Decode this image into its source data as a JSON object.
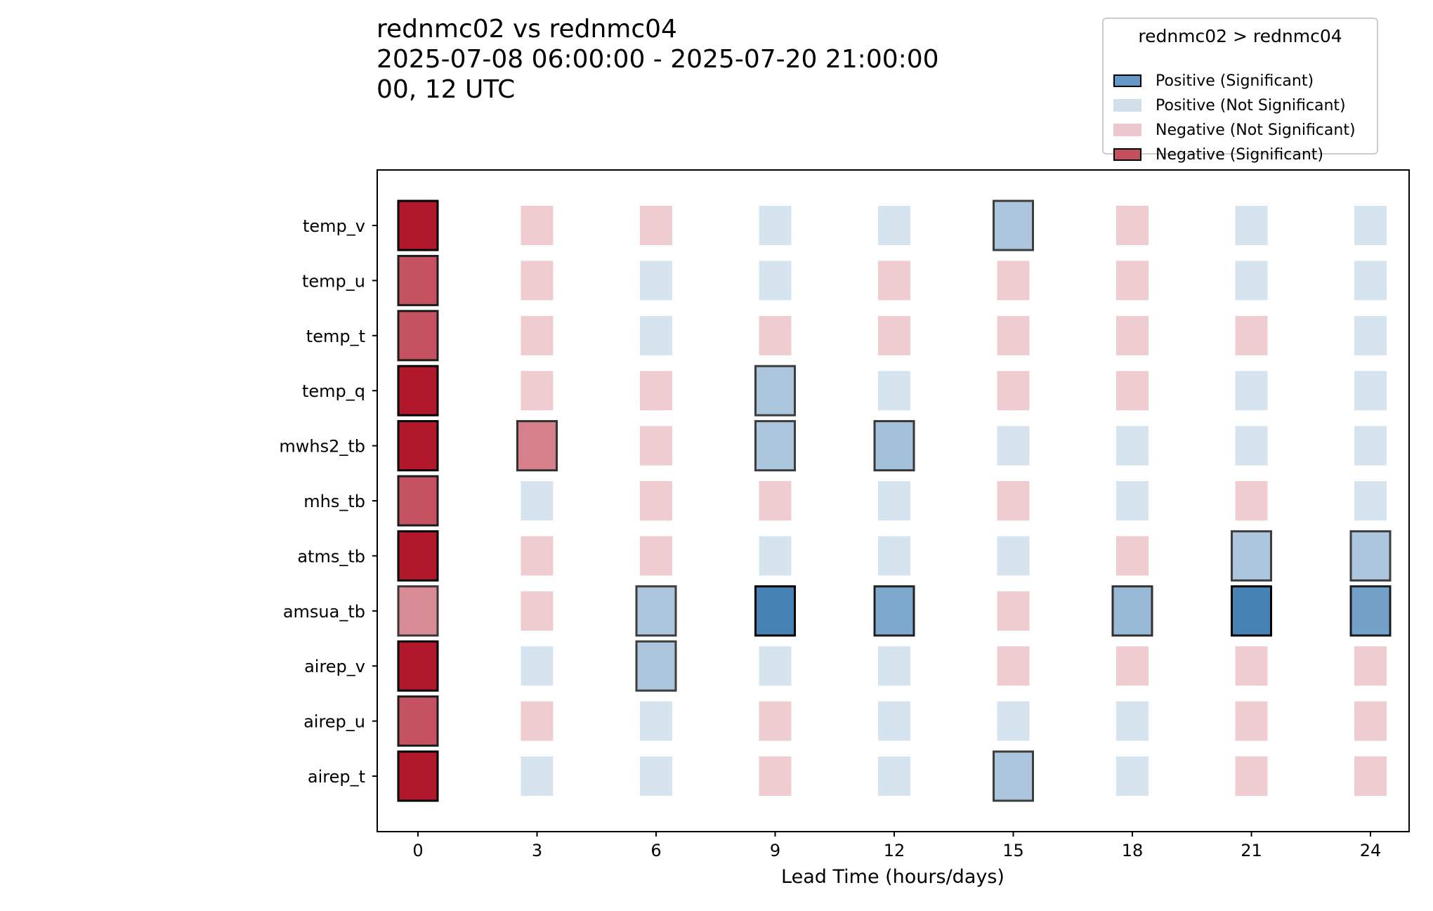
{
  "title_lines": [
    "rednmc02 vs rednmc04",
    "2025-07-08 06:00:00 - 2025-07-20 21:00:00",
    "00, 12 UTC"
  ],
  "legend": {
    "title": "rednmc02 > rednmc04",
    "items": [
      {
        "label": "Positive (Significant)",
        "fill": "#6598c6",
        "stroke": "#000000"
      },
      {
        "label": "Positive (Not Significant)",
        "fill": "#d1dfeb",
        "stroke": "none"
      },
      {
        "label": "Negative (Not Significant)",
        "fill": "#ecc7cd",
        "stroke": "none"
      },
      {
        "label": "Negative (Significant)",
        "fill": "#c4505e",
        "stroke": "#000000"
      }
    ]
  },
  "chart_data": {
    "type": "heatmap",
    "xlabel": "Lead Time (hours/days)",
    "ylabel": "",
    "x": [
      0,
      3,
      6,
      9,
      12,
      15,
      18,
      21,
      24
    ],
    "y": [
      "temp_v",
      "temp_u",
      "temp_t",
      "temp_q",
      "mwhs2_tb",
      "mhs_tb",
      "atms_tb",
      "amsua_tb",
      "airep_v",
      "airep_u",
      "airep_t"
    ],
    "legend_placement": "top-right",
    "grid": false,
    "value_meaning": "signed strength: negative = rednmc02 worse (red), positive = rednmc02 better (blue); |value| 0-1 intensity",
    "significant": [
      [
        true,
        false,
        false,
        false,
        false,
        true,
        false,
        false,
        false
      ],
      [
        true,
        false,
        false,
        false,
        false,
        false,
        false,
        false,
        false
      ],
      [
        true,
        false,
        false,
        false,
        false,
        false,
        false,
        false,
        false
      ],
      [
        true,
        false,
        false,
        true,
        false,
        false,
        false,
        false,
        false
      ],
      [
        true,
        true,
        false,
        true,
        true,
        false,
        false,
        false,
        false
      ],
      [
        true,
        false,
        false,
        false,
        false,
        false,
        false,
        false,
        false
      ],
      [
        true,
        false,
        false,
        false,
        false,
        false,
        false,
        true,
        true
      ],
      [
        true,
        false,
        true,
        true,
        true,
        false,
        true,
        true,
        true
      ],
      [
        true,
        false,
        true,
        false,
        false,
        false,
        false,
        false,
        false
      ],
      [
        true,
        false,
        false,
        false,
        false,
        false,
        false,
        false,
        false
      ],
      [
        true,
        false,
        false,
        false,
        false,
        true,
        false,
        false,
        false
      ]
    ],
    "values": [
      [
        -1.0,
        -0.2,
        -0.2,
        0.2,
        0.2,
        0.45,
        -0.2,
        0.2,
        0.2
      ],
      [
        -0.75,
        -0.2,
        0.2,
        0.2,
        -0.2,
        -0.2,
        -0.2,
        0.2,
        0.2
      ],
      [
        -0.75,
        -0.2,
        0.2,
        -0.2,
        -0.2,
        -0.2,
        -0.2,
        -0.2,
        0.2
      ],
      [
        -1.0,
        -0.2,
        -0.2,
        0.45,
        0.2,
        -0.2,
        -0.2,
        0.2,
        0.2
      ],
      [
        -1.0,
        -0.55,
        -0.2,
        0.45,
        0.5,
        0.2,
        0.2,
        0.2,
        0.2
      ],
      [
        -0.75,
        0.2,
        -0.2,
        -0.2,
        0.2,
        -0.2,
        0.2,
        -0.2,
        0.2
      ],
      [
        -1.0,
        -0.2,
        -0.2,
        0.2,
        0.2,
        0.2,
        -0.2,
        0.45,
        0.45
      ],
      [
        -0.5,
        -0.2,
        0.45,
        1.0,
        0.7,
        -0.2,
        0.55,
        1.0,
        0.75
      ],
      [
        -1.0,
        0.2,
        0.45,
        0.2,
        0.2,
        -0.2,
        -0.2,
        -0.2,
        -0.2
      ],
      [
        -0.75,
        -0.2,
        0.2,
        -0.2,
        0.2,
        0.2,
        0.2,
        -0.2,
        -0.2
      ],
      [
        -1.0,
        0.2,
        0.2,
        -0.2,
        0.2,
        0.45,
        0.2,
        -0.2,
        -0.2
      ]
    ],
    "colors": {
      "positive": "#4682b4",
      "negative": "#b2182b"
    }
  }
}
